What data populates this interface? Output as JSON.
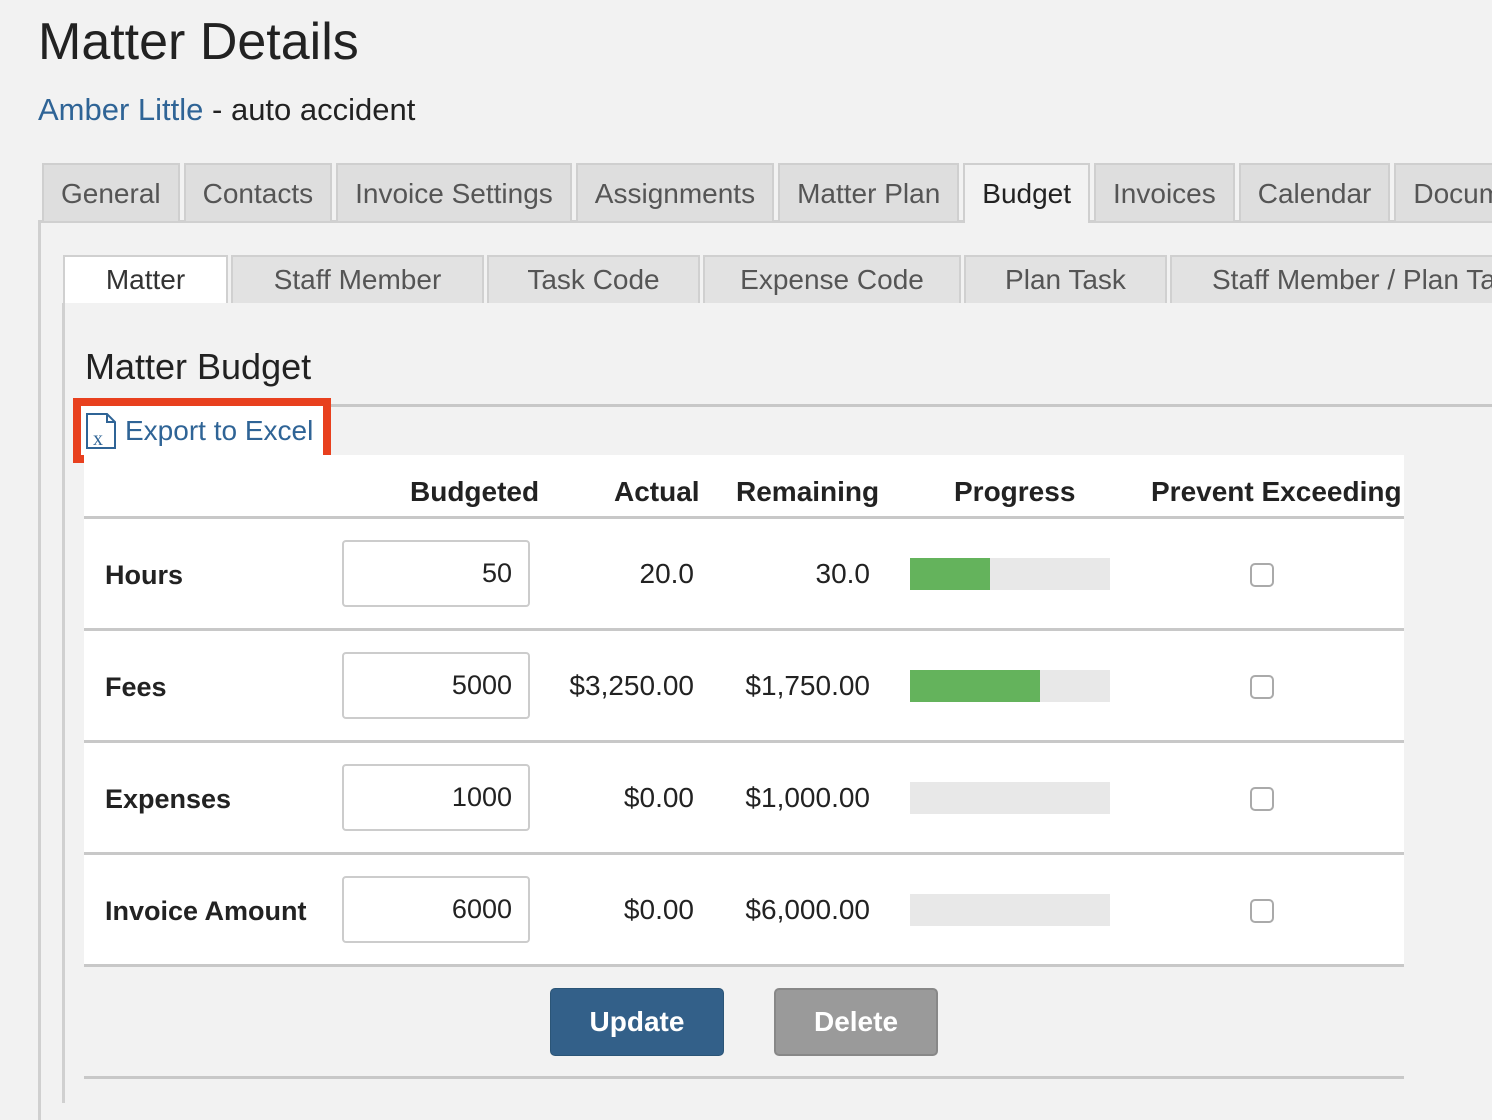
{
  "header": {
    "title": "Matter Details",
    "client_link": "Amber Little",
    "matter_suffix": " - auto accident"
  },
  "tabs": [
    "General",
    "Contacts",
    "Invoice Settings",
    "Assignments",
    "Matter Plan",
    "Budget",
    "Invoices",
    "Calendar",
    "Docum"
  ],
  "active_tab": "Budget",
  "subtabs": [
    "Matter",
    "Staff Member",
    "Task Code",
    "Expense Code",
    "Plan Task",
    "Staff Member / Plan Ta"
  ],
  "active_subtab": "Matter",
  "section_title": "Matter Budget",
  "export_label": "Export to Excel",
  "columns": {
    "budgeted": "Budgeted",
    "actual": "Actual",
    "remaining": "Remaining",
    "progress": "Progress",
    "prevent": "Prevent Exceeding"
  },
  "rows": [
    {
      "label": "Hours",
      "budgeted": "50",
      "actual": "20.0",
      "remaining": "30.0",
      "progress_pct": 40,
      "prevent": false
    },
    {
      "label": "Fees",
      "budgeted": "5000",
      "actual": "$3,250.00",
      "remaining": "$1,750.00",
      "progress_pct": 65,
      "prevent": false
    },
    {
      "label": "Expenses",
      "budgeted": "1000",
      "actual": "$0.00",
      "remaining": "$1,000.00",
      "progress_pct": 0,
      "prevent": false
    },
    {
      "label": "Invoice Amount",
      "budgeted": "6000",
      "actual": "$0.00",
      "remaining": "$6,000.00",
      "progress_pct": 0,
      "prevent": false
    }
  ],
  "buttons": {
    "update": "Update",
    "delete": "Delete"
  },
  "colors": {
    "accent": "#2f6496",
    "progress": "#64b35c",
    "highlight": "#e8401e",
    "update": "#336089",
    "delete": "#9a9a9a"
  }
}
